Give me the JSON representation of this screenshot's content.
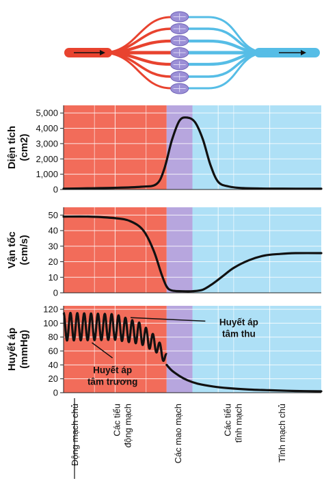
{
  "colors": {
    "artery": "#f26c5a",
    "capillary": "#b7a6de",
    "vein": "#aee0f6",
    "curve": "#111111",
    "vessel_red": "#e8432f",
    "vessel_blue": "#56bde6"
  },
  "regions": [
    {
      "key": "aorta",
      "label": "Động mạch chủ",
      "lines": [
        "Động mạch chủ"
      ],
      "color": "#f26c5a",
      "x_from": 0,
      "x_to": 1
    },
    {
      "key": "arterioles",
      "label": "Các tiểu động mạch",
      "lines": [
        "Các tiểu",
        "động mạch"
      ],
      "color": "#f26c5a",
      "x_from": 1,
      "x_to": 2
    },
    {
      "key": "capillaries",
      "label": "Các mao mạch",
      "lines": [
        "Các mao mạch"
      ],
      "color": "#b7a6de",
      "x_from": 2,
      "x_to": 2.5
    },
    {
      "key": "venules",
      "label": "Các tiểu tĩnh mạch",
      "lines": [
        "Các tiểu",
        "tĩnh mạch"
      ],
      "color": "#aee0f6",
      "x_from": 2.5,
      "x_to": 4
    },
    {
      "key": "vena_cava",
      "label": "Tĩnh mạch chủ",
      "lines": [
        "Tĩnh mạch chủ"
      ],
      "color": "#aee0f6",
      "x_from": 4,
      "x_to": 5
    }
  ],
  "diagram": {
    "arrow_in": "arrow-right-icon",
    "arrow_out": "arrow-right-icon"
  },
  "chart_data": [
    {
      "type": "line",
      "ylabel": "Diện tích (cm2)",
      "ylabel_lines": [
        "Diện tích",
        "(cm2)"
      ],
      "ylim": [
        0,
        5500
      ],
      "yticks": [
        0,
        1000,
        2000,
        3000,
        4000,
        5000
      ],
      "ytick_labels": [
        "0",
        "1,000",
        "2,000",
        "3,000",
        "4,000",
        "5,000"
      ],
      "grid": true,
      "x": [
        0,
        0.5,
        1,
        1.5,
        1.8,
        1.95,
        2.1,
        2.25,
        2.4,
        2.55,
        2.7,
        2.85,
        3.0,
        3.2,
        3.5,
        4,
        4.5,
        5
      ],
      "values": [
        50,
        80,
        110,
        180,
        350,
        1300,
        3200,
        4500,
        4700,
        4400,
        3300,
        1600,
        500,
        200,
        90,
        60,
        55,
        50
      ]
    },
    {
      "type": "line",
      "ylabel": "Vận tốc (cm/s)",
      "ylabel_lines": [
        "Vận tốc",
        "(cm/s)"
      ],
      "ylim": [
        0,
        55
      ],
      "yticks": [
        0,
        10,
        20,
        30,
        40,
        50
      ],
      "ytick_labels": [
        "0",
        "10",
        "20",
        "30",
        "40",
        "50"
      ],
      "grid": true,
      "x": [
        0,
        0.5,
        1,
        1.3,
        1.55,
        1.75,
        1.9,
        2.0,
        2.1,
        2.3,
        2.5,
        2.7,
        2.9,
        3.1,
        3.3,
        3.6,
        3.9,
        4.2,
        4.5,
        5
      ],
      "values": [
        49,
        49,
        48,
        46,
        40,
        27,
        12,
        4,
        1.5,
        1,
        1,
        2,
        6,
        11,
        16,
        21,
        24,
        25,
        25.5,
        25.5
      ]
    },
    {
      "type": "line",
      "ylabel": "Huyết áp (mmHg)",
      "ylabel_lines": [
        "Huyết áp",
        "(mmHg)"
      ],
      "ylim": [
        0,
        125
      ],
      "yticks": [
        0,
        20,
        40,
        60,
        80,
        100,
        120
      ],
      "ytick_labels": [
        "0",
        "20",
        "40",
        "60",
        "80",
        "100",
        "120"
      ],
      "grid": true,
      "pulse": {
        "x_start": 0,
        "x_end": 2.0,
        "cycles": 15,
        "systolic_profile": {
          "x": [
            0,
            1,
            1.5,
            1.8,
            2.0
          ],
          "values": [
            115,
            113,
            100,
            80,
            55
          ]
        },
        "diastolic_profile": {
          "x": [
            0,
            1,
            1.5,
            1.8,
            2.0
          ],
          "values": [
            75,
            76,
            70,
            58,
            40
          ]
        }
      },
      "tail": {
        "x": [
          2.0,
          2.1,
          2.25,
          2.4,
          2.6,
          2.9,
          3.2,
          3.6,
          4.0,
          4.5,
          5.0
        ],
        "values": [
          40,
          32,
          24,
          18,
          13,
          9,
          6.5,
          4.5,
          3.5,
          2.5,
          2
        ]
      },
      "annotations": [
        {
          "key": "systolic",
          "lines": [
            "Huyết áp",
            "tâm thu"
          ],
          "x": 3.4,
          "y": 97
        },
        {
          "key": "diastolic",
          "lines": [
            "Huyết áp",
            "tâm trương"
          ],
          "x": 0.95,
          "y": 28
        }
      ]
    }
  ]
}
